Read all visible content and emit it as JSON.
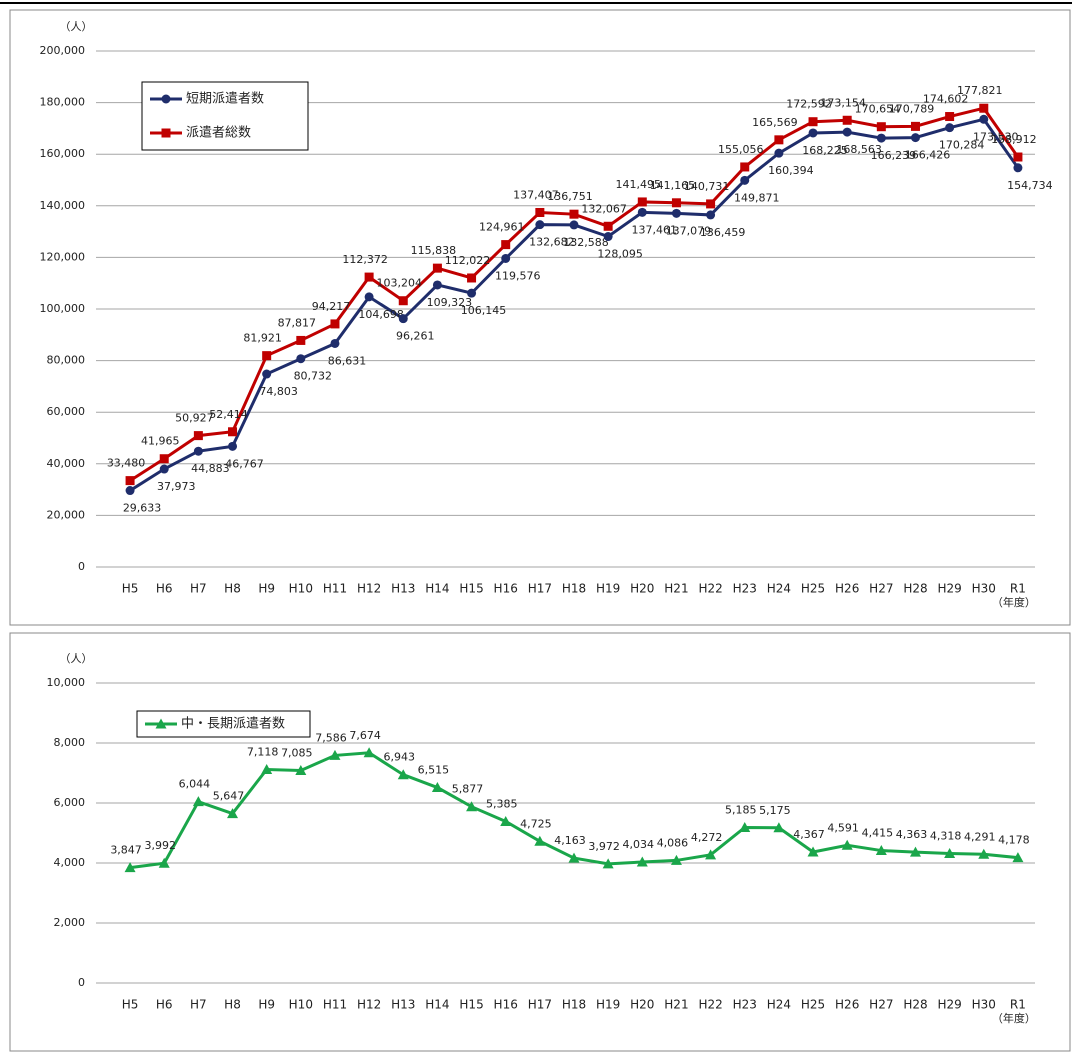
{
  "chart_data": [
    {
      "type": "line",
      "ylabel": "（人）",
      "xlabel": "（年度）",
      "categories": [
        "H5",
        "H6",
        "H7",
        "H8",
        "H9",
        "H10",
        "H11",
        "H12",
        "H13",
        "H14",
        "H15",
        "H16",
        "H17",
        "H18",
        "H19",
        "H20",
        "H21",
        "H22",
        "H23",
        "H24",
        "H25",
        "H26",
        "H27",
        "H28",
        "H29",
        "H30",
        "R1"
      ],
      "ylim": [
        0,
        200000
      ],
      "yticks": [
        0,
        {
          "value": 20000,
          "label": "20,000"
        },
        {
          "value": 40000,
          "label": "40,000"
        },
        {
          "value": 60000,
          "label": "60,000"
        },
        {
          "value": 80000,
          "label": "80,000"
        },
        {
          "value": 100000,
          "label": "100,000"
        },
        {
          "value": 120000,
          "label": "120,000"
        },
        {
          "value": 140000,
          "label": "140,000"
        },
        {
          "value": 160000,
          "label": "160,000"
        },
        {
          "value": 180000,
          "label": "180,000"
        },
        {
          "value": 200000,
          "label": "200,000"
        }
      ],
      "grid": true,
      "legend": "upper left",
      "series": [
        {
          "name": "短期派遣者数",
          "color": "#1f2d6b",
          "marker": "circle",
          "values": [
            29633,
            37973,
            44883,
            46767,
            74803,
            80732,
            86631,
            104698,
            96261,
            109323,
            106145,
            119576,
            132682,
            132588,
            128095,
            137461,
            137079,
            136459,
            149871,
            160394,
            168225,
            168563,
            166239,
            166426,
            170284,
            173530,
            154734
          ],
          "value_labels": [
            "29,633",
            "37,973",
            "44,883",
            "46,767",
            "74,803",
            "80,732",
            "86,631",
            "104,698",
            "96,261",
            "109,323",
            "106,145",
            "119,576",
            "132,682",
            "132,588",
            "128,095",
            "137,461",
            "137,079",
            "136,459",
            "149,871",
            "160,394",
            "168,225",
            "168,563",
            "166,239",
            "166,426",
            "170,284",
            "173,530",
            "154,734"
          ]
        },
        {
          "name": "派遣者総数",
          "color": "#c00000",
          "marker": "square",
          "values": [
            33480,
            41965,
            50927,
            52414,
            81921,
            87817,
            94217,
            112372,
            103204,
            115838,
            112022,
            124961,
            137407,
            136751,
            132067,
            141495,
            141165,
            140731,
            155056,
            165569,
            172592,
            173154,
            170654,
            170789,
            174602,
            177821,
            158912
          ],
          "value_labels": [
            "33,480",
            "41,965",
            "50,927",
            "52,414",
            "81,921",
            "87,817",
            "94,217",
            "112,372",
            "103,204",
            "115,838",
            "112,022",
            "124,961",
            "137,407",
            "136,751",
            "132,067",
            "141,495",
            "141,165",
            "140,731",
            "155,056",
            "165,569",
            "172,592",
            "173,154",
            "170,654",
            "170,789",
            "174,602",
            "177,821",
            "158,912"
          ]
        }
      ]
    },
    {
      "type": "line",
      "ylabel": "（人）",
      "xlabel": "（年度）",
      "categories": [
        "H5",
        "H6",
        "H7",
        "H8",
        "H9",
        "H10",
        "H11",
        "H12",
        "H13",
        "H14",
        "H15",
        "H16",
        "H17",
        "H18",
        "H19",
        "H20",
        "H21",
        "H22",
        "H23",
        "H24",
        "H25",
        "H26",
        "H27",
        "H28",
        "H29",
        "H30",
        "R1"
      ],
      "ylim": [
        0,
        10000
      ],
      "yticks": [
        0,
        {
          "value": 2000,
          "label": "2,000"
        },
        {
          "value": 4000,
          "label": "4,000"
        },
        {
          "value": 6000,
          "label": "6,000"
        },
        {
          "value": 8000,
          "label": "8,000"
        },
        {
          "value": 10000,
          "label": "10,000"
        }
      ],
      "grid": true,
      "legend": "upper left",
      "series": [
        {
          "name": "中・長期派遣者数",
          "color": "#1aa64a",
          "marker": "triangle",
          "values": [
            3847,
            3992,
            6044,
            5647,
            7118,
            7085,
            7586,
            7674,
            6943,
            6515,
            5877,
            5385,
            4725,
            4163,
            3972,
            4034,
            4086,
            4272,
            5185,
            5175,
            4367,
            4591,
            4415,
            4363,
            4318,
            4291,
            4178
          ],
          "value_labels": [
            "3,847",
            "3,992",
            "6,044",
            "5,647",
            "7,118",
            "7,085",
            "7,586",
            "7,674",
            "6,943",
            "6,515",
            "5,877",
            "5,385",
            "4,725",
            "4,163",
            "3,972",
            "4,034",
            "4,086",
            "4,272",
            "5,185",
            "5,175",
            "4,367",
            "4,591",
            "4,415",
            "4,363",
            "4,318",
            "4,291",
            "4,178"
          ]
        }
      ]
    }
  ]
}
